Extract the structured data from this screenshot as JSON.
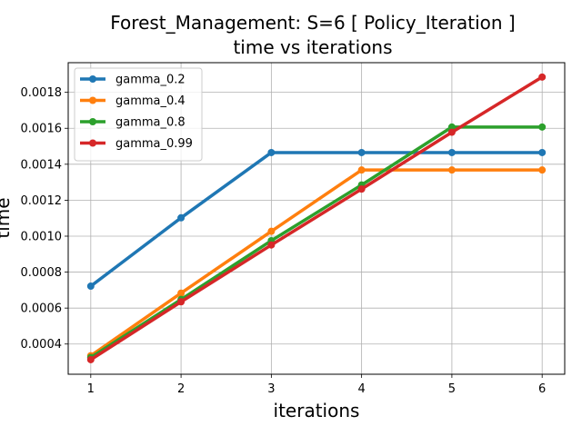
{
  "chart_data": {
    "type": "line",
    "title_line1": "Forest_Management: S=6 [ Policy_Iteration ]",
    "title_line2": "time vs iterations",
    "xlabel": "iterations",
    "ylabel": "time",
    "x": [
      1,
      2,
      3,
      4,
      5,
      6
    ],
    "xlim": [
      0.75,
      6.25
    ],
    "ylim": [
      0.000232,
      0.001965
    ],
    "x_ticks": [
      1,
      2,
      3,
      4,
      5,
      6
    ],
    "x_tick_labels": [
      "1",
      "2",
      "3",
      "4",
      "5",
      "6"
    ],
    "y_ticks": [
      0.0004,
      0.0006,
      0.0008,
      0.001,
      0.0012,
      0.0014,
      0.0016,
      0.0018
    ],
    "y_tick_labels": [
      "0.0004",
      "0.0006",
      "0.0008",
      "0.0010",
      "0.0012",
      "0.0014",
      "0.0016",
      "0.0018"
    ],
    "grid": true,
    "legend_position": "top-left",
    "series": [
      {
        "name": "gamma_0.2",
        "color": "#1f77b4",
        "values": [
          0.000722,
          0.001102,
          0.001465,
          0.001465,
          0.001465,
          0.001465
        ]
      },
      {
        "name": "gamma_0.4",
        "color": "#ff7f0e",
        "values": [
          0.000335,
          0.000683,
          0.001027,
          0.001368,
          0.001368,
          0.001368
        ]
      },
      {
        "name": "gamma_0.8",
        "color": "#2ca02c",
        "values": [
          0.000325,
          0.000648,
          0.000975,
          0.001285,
          0.001607,
          0.001607
        ]
      },
      {
        "name": "gamma_0.99",
        "color": "#d62728",
        "values": [
          0.000313,
          0.000635,
          0.000951,
          0.001262,
          0.001578,
          0.001885
        ]
      }
    ]
  }
}
